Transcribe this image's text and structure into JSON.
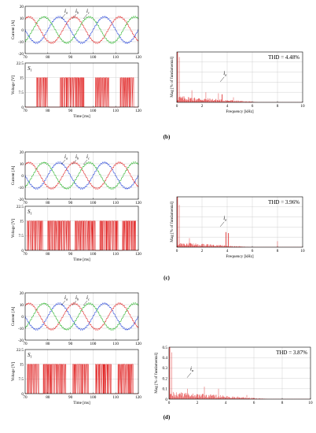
{
  "captions": [
    "(b)",
    "(c)",
    "(d)"
  ],
  "common": {
    "current_ylabel": "Current [A]",
    "voltage_ylabel": "Voltage [V]",
    "time_xlabel": "Time [ms]",
    "spectrum_ylabel": "Mag [% of fundamental]",
    "spectrum_xlabel": "Frequency [kHz]",
    "switch_label_main": "S",
    "switch_label_sub": "1",
    "phase_labels": [
      {
        "main": "i",
        "sub": "a"
      },
      {
        "main": "i",
        "sub": "b"
      },
      {
        "main": "i",
        "sub": "c"
      }
    ],
    "spectrum_annotation": {
      "main": "i",
      "sub": "a"
    }
  },
  "colors": {
    "phase_a": "#1f3fd8",
    "phase_b": "#e02020",
    "phase_c": "#20b020",
    "switching": "#e02020",
    "spectrum": "#e03030",
    "grid": "#c8c8c8"
  },
  "chart_data": [
    {
      "type": "line",
      "panel": "b",
      "name": "phase-currents",
      "xlabel": "",
      "ylabel": "Current [A]",
      "xlim": [
        70,
        120
      ],
      "ylim": [
        -20,
        20
      ],
      "xticks": [
        70,
        80,
        90,
        100,
        110,
        120
      ],
      "yticks": [
        -20,
        -10,
        0,
        10,
        20
      ],
      "amplitude": 11,
      "frequency_hz": 50,
      "phase_deg": [
        0,
        -120,
        120
      ],
      "grid": true
    },
    {
      "type": "line",
      "panel": "b",
      "name": "switching-signal",
      "xlabel": "Time [ms]",
      "ylabel": "Voltage [V]",
      "xlim": [
        70,
        120
      ],
      "ylim": [
        0,
        22.5
      ],
      "xticks": [
        70,
        80,
        90,
        100,
        110,
        120
      ],
      "yticks": [
        0,
        7.5,
        15,
        22.5
      ],
      "high": 15,
      "low": 0,
      "active_intervals_ms": [
        [
          75,
          80
        ],
        [
          85.5,
          96
        ],
        [
          101,
          107
        ],
        [
          112,
          118
        ]
      ],
      "grid": true
    },
    {
      "type": "bar",
      "panel": "b",
      "name": "spectrum",
      "xlabel": "Frequency [kHz]",
      "ylabel": "Mag [% of fundamental]",
      "xlim": [
        0,
        10
      ],
      "ylim": [
        0,
        0.5
      ],
      "xticks": [
        0,
        2,
        4,
        6,
        8,
        10
      ],
      "yticks": [],
      "thd": "THD = 4.48%",
      "fundamental": 0.5,
      "noise_floor": 0.06,
      "decay_end_khz": 6.5,
      "peaks": [
        {
          "x": 0.2,
          "y": 0.45
        },
        {
          "x": 1.2,
          "y": 0.12
        },
        {
          "x": 2.3,
          "y": 0.1
        },
        {
          "x": 3.3,
          "y": 0.09
        },
        {
          "x": 3.6,
          "y": 0.08
        },
        {
          "x": 4.5,
          "y": 0.05
        }
      ],
      "grid": true
    },
    {
      "type": "line",
      "panel": "c",
      "name": "phase-currents",
      "xlabel": "",
      "ylabel": "Current [A]",
      "xlim": [
        70,
        120
      ],
      "ylim": [
        -20,
        20
      ],
      "xticks": [
        70,
        80,
        90,
        100,
        110,
        120
      ],
      "yticks": [
        -20,
        -10,
        0,
        10,
        20
      ],
      "amplitude": 11,
      "frequency_hz": 50,
      "phase_deg": [
        0,
        -120,
        120
      ],
      "grid": true
    },
    {
      "type": "line",
      "panel": "c",
      "name": "switching-signal",
      "xlabel": "Time [ms]",
      "ylabel": "Voltage [V]",
      "xlim": [
        70,
        120
      ],
      "ylim": [
        0,
        22.5
      ],
      "xticks": [
        70,
        80,
        90,
        100,
        110,
        120
      ],
      "yticks": [
        0,
        7.5,
        15,
        22.5
      ],
      "high": 15,
      "low": 0,
      "active_intervals_ms": [
        [
          71,
          78
        ],
        [
          80,
          90
        ],
        [
          92,
          101
        ],
        [
          103,
          111
        ],
        [
          113,
          119
        ]
      ],
      "grid": true
    },
    {
      "type": "bar",
      "panel": "c",
      "name": "spectrum",
      "xlabel": "Frequency [kHz]",
      "ylabel": "Mag [% of fundamental]",
      "xlim": [
        0,
        10
      ],
      "ylim": [
        0,
        0.5
      ],
      "xticks": [
        0,
        2,
        4,
        6,
        8,
        10
      ],
      "yticks": [],
      "thd": "THD = 3.96%",
      "fundamental": 0.5,
      "noise_floor": 0.045,
      "decay_end_khz": 6,
      "peaks": [
        {
          "x": 0.2,
          "y": 0.42
        },
        {
          "x": 1.0,
          "y": 0.09
        },
        {
          "x": 3.9,
          "y": 0.15
        },
        {
          "x": 4.1,
          "y": 0.14
        },
        {
          "x": 8.0,
          "y": 0.06
        }
      ],
      "grid": true
    },
    {
      "type": "line",
      "panel": "d",
      "name": "phase-currents",
      "xlabel": "",
      "ylabel": "Current [A]",
      "xlim": [
        70,
        120
      ],
      "ylim": [
        -20,
        20
      ],
      "xticks": [
        70,
        80,
        90,
        100,
        110,
        120
      ],
      "yticks": [
        -20,
        -10,
        0,
        10,
        20
      ],
      "amplitude": 11,
      "frequency_hz": 50,
      "phase_deg": [
        0,
        -120,
        120
      ],
      "grid": true
    },
    {
      "type": "line",
      "panel": "d",
      "name": "switching-signal",
      "xlabel": "Time [ms]",
      "ylabel": "Voltage [V]",
      "xlim": [
        70,
        120
      ],
      "ylim": [
        0,
        22.5
      ],
      "xticks": [
        70,
        80,
        90,
        100,
        110,
        120
      ],
      "yticks": [
        0,
        7.5,
        15,
        22.5
      ],
      "high": 15,
      "low": 0,
      "active_intervals_ms": [
        [
          71,
          76
        ],
        [
          78,
          88
        ],
        [
          91,
          98
        ],
        [
          101,
          108
        ],
        [
          111,
          118
        ]
      ],
      "grid": true
    },
    {
      "type": "bar",
      "panel": "d",
      "name": "spectrum",
      "xlabel": "",
      "ylabel": "Mag [% of fundamental]",
      "xlim": [
        0,
        10
      ],
      "ylim": [
        0,
        0.5
      ],
      "xticks": [
        0,
        2,
        4,
        6,
        8,
        10
      ],
      "yticks": [
        0,
        0.1,
        0.2,
        0.3,
        0.4,
        0.5
      ],
      "thd": "THD = 3.87%",
      "fundamental": 0.5,
      "noise_floor": 0.07,
      "decay_end_khz": 7,
      "peaks": [
        {
          "x": 0.2,
          "y": 0.45
        },
        {
          "x": 1.3,
          "y": 0.1
        },
        {
          "x": 2.5,
          "y": 0.12
        },
        {
          "x": 3.5,
          "y": 0.1
        },
        {
          "x": 5.5,
          "y": 0.04
        }
      ],
      "grid": true
    }
  ]
}
